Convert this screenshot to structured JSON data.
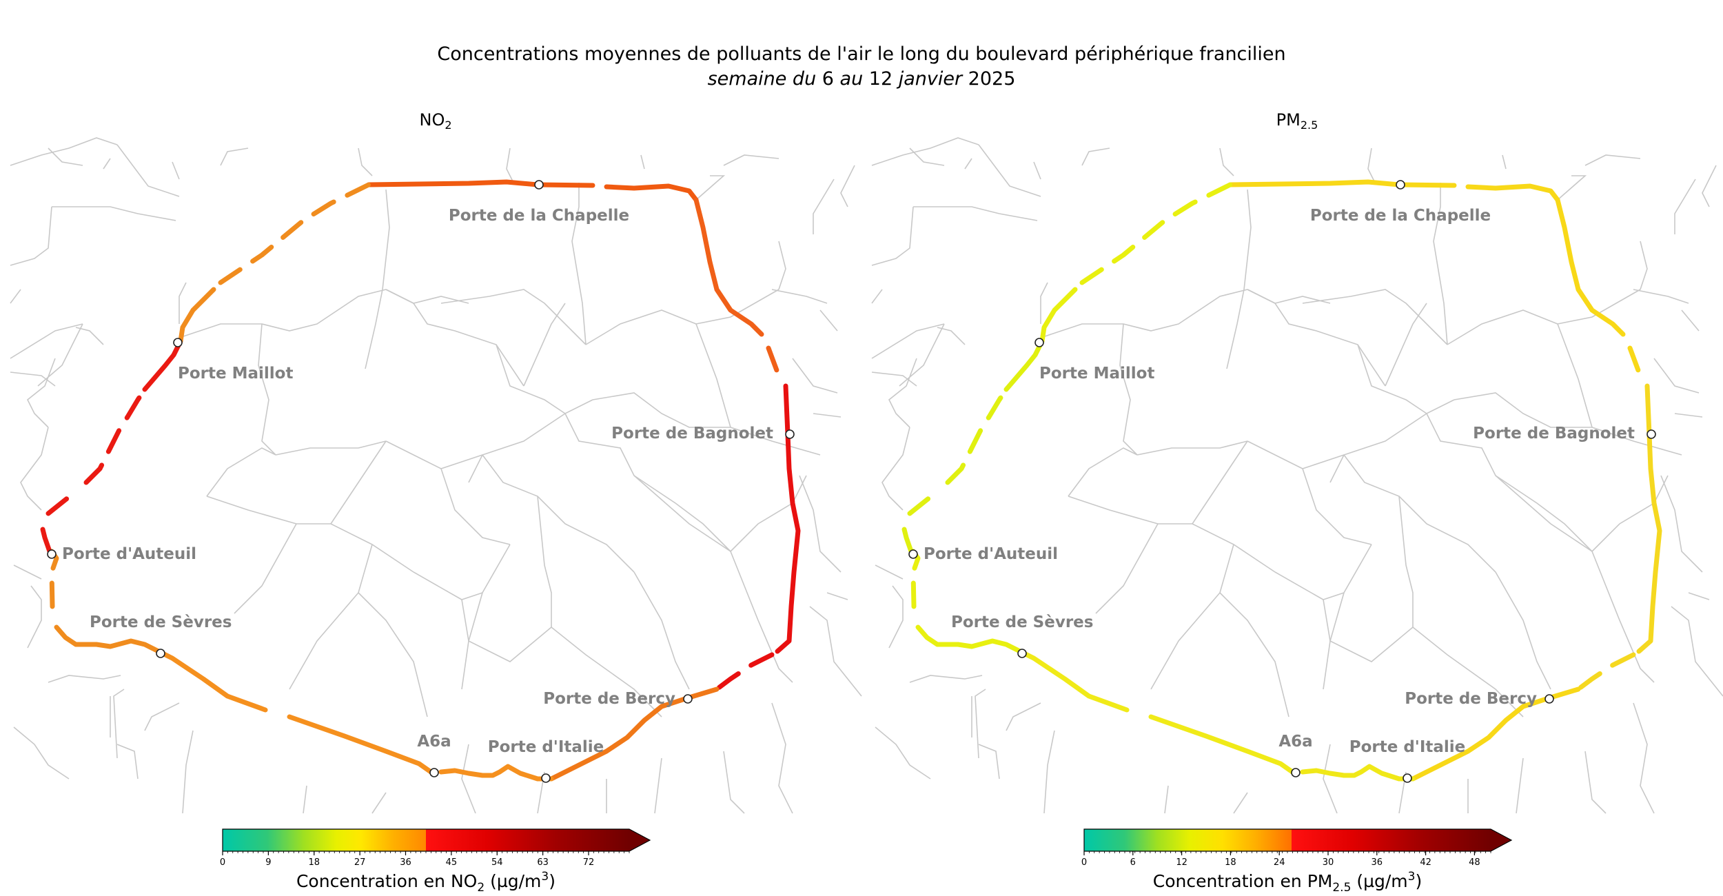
{
  "header": {
    "title": "Concentrations moyennes de polluants de l'air le long du boulevard périphérique francilien",
    "subtitle_part1": "semaine du",
    "subtitle_part2": " 6 ",
    "subtitle_part3": "au",
    "subtitle_part4": " 12 ",
    "subtitle_part5": "janvier",
    "subtitle_part6": " 2025"
  },
  "panels": [
    {
      "id": "no2",
      "title_main": "NO",
      "title_sub": "2",
      "line_colors": {
        "north": "#f05a10",
        "northeast": "#f06018",
        "east": "#e81010",
        "southeast": "#f07818",
        "south": "#f5901e",
        "southwest": "#f5901e",
        "west_sw": "#f08c1e",
        "west": "#ea1a12"
      },
      "colorbar": {
        "label_pre": "Concentration en NO",
        "label_sub": "2",
        "label_post": " (µg/m",
        "label_sup": "3",
        "label_end": ")",
        "vmax": 80,
        "ticks": [
          "0",
          "9",
          "18",
          "27",
          "36",
          "45",
          "54",
          "63",
          "72"
        ],
        "tick_values": [
          0,
          9,
          18,
          27,
          36,
          45,
          54,
          63,
          72
        ]
      }
    },
    {
      "id": "pm25",
      "title_main": "PM",
      "title_sub": "2.5",
      "line_colors": {
        "north": "#f8d818",
        "northeast": "#f8d818",
        "east": "#f5d820",
        "southeast": "#f8d818",
        "south": "#f0e818",
        "southwest": "#f0ea18",
        "west_sw": "#e8f010",
        "west": "#e0f010"
      },
      "colorbar": {
        "label_pre": "Concentration en PM",
        "label_sub": "2.5",
        "label_post": " (µg/m",
        "label_sup": "3",
        "label_end": ")",
        "vmax": 50,
        "ticks": [
          "0",
          "6",
          "12",
          "18",
          "24",
          "30",
          "36",
          "42",
          "48"
        ],
        "tick_values": [
          0,
          6,
          12,
          18,
          24,
          30,
          36,
          42,
          48
        ]
      }
    }
  ],
  "portes": [
    {
      "name": "Porte de la Chapelle"
    },
    {
      "name": "Porte Maillot"
    },
    {
      "name": "Porte de Bagnolet"
    },
    {
      "name": "Porte d'Auteuil"
    },
    {
      "name": "Porte de Sèvres"
    },
    {
      "name": "Porte de Bercy"
    },
    {
      "name": "A6a"
    },
    {
      "name": "Porte d'Italie"
    }
  ]
}
